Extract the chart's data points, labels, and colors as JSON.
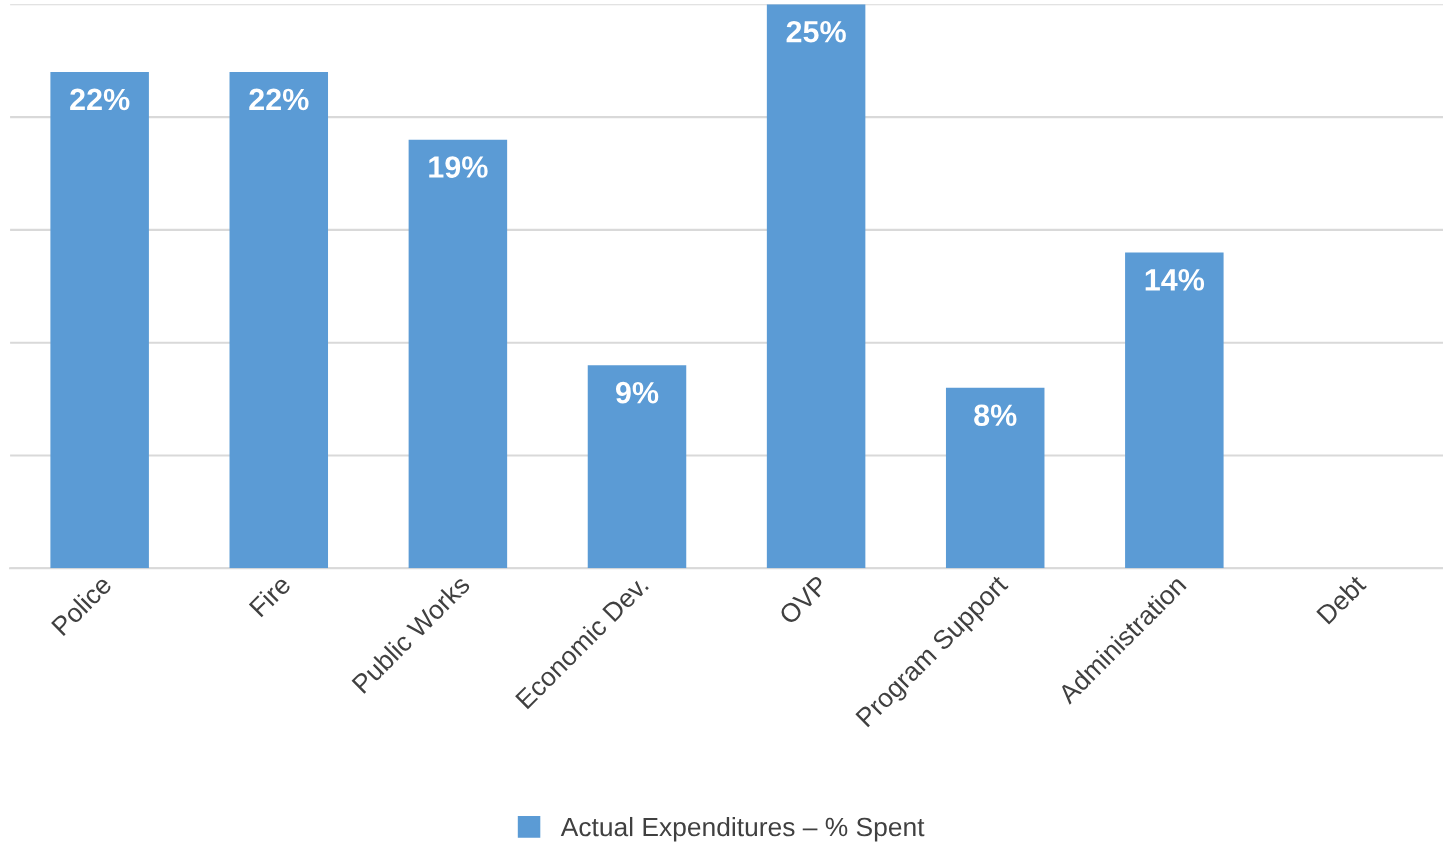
{
  "chart_data": {
    "type": "bar",
    "categories": [
      "Police",
      "Fire",
      "Public Works",
      "Economic Dev.",
      "OVP",
      "Program Support",
      "Administration",
      "Debt"
    ],
    "series": [
      {
        "name": "Actual Expenditures – % Spent",
        "color": "#5b9bd5",
        "values": [
          22,
          22,
          19,
          9,
          25,
          8,
          14,
          null
        ],
        "value_labels": [
          "22%",
          "22%",
          "19%",
          "9%",
          "25%",
          "8%",
          "14%",
          null
        ]
      }
    ],
    "ylim": [
      0,
      25
    ],
    "yticks": [
      {
        "value": 0,
        "label": null
      },
      {
        "value": 5,
        "label": null
      },
      {
        "value": 10,
        "label": null
      },
      {
        "value": 15,
        "label": null
      },
      {
        "value": 20,
        "label": null
      },
      {
        "value": 25,
        "label": null
      }
    ],
    "tick_labels": "x",
    "grid": "y",
    "legend": "bottom"
  }
}
